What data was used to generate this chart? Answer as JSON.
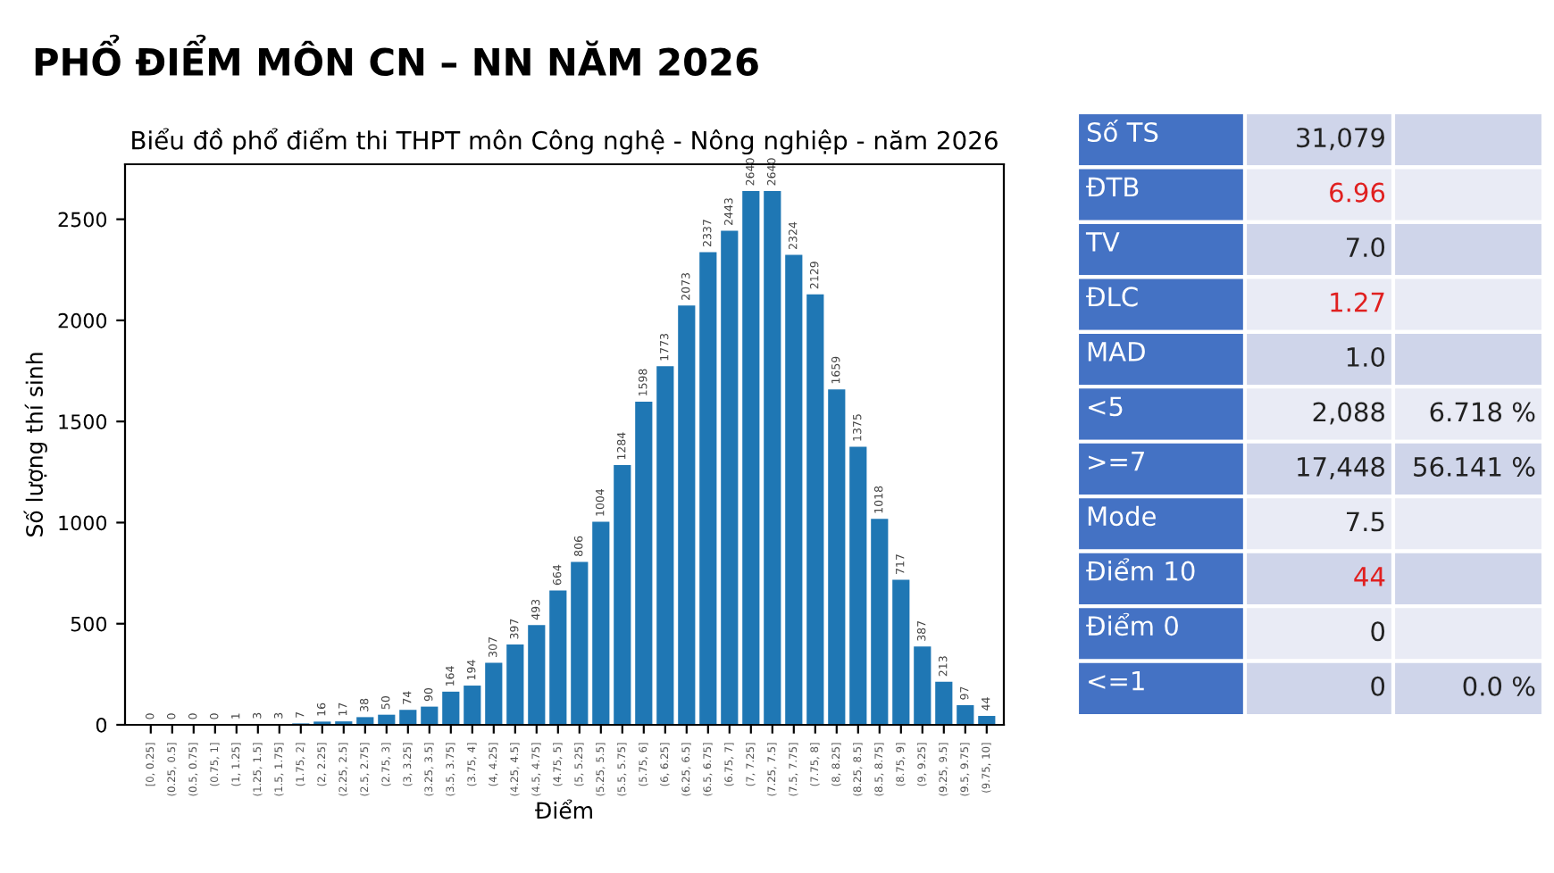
{
  "chart_data": [
    {
      "type": "bar",
      "title": "PHỔ ĐIỂM MÔN CN – NN NĂM 2026",
      "subtitle": "Biểu đồ phổ điểm thi THPT môn Công nghệ - Nông nghiệp - năm 2026",
      "xlabel": "Điểm",
      "ylabel": "Số lượng thí sinh",
      "categories": [
        "[0, 0.25]",
        "(0.25, 0.5]",
        "(0.5, 0.75]",
        "(0.75, 1]",
        "(1, 1.25]",
        "(1.25, 1.5]",
        "(1.5, 1.75]",
        "(1.75, 2]",
        "(2, 2.25]",
        "(2.25, 2.5]",
        "(2.5, 2.75]",
        "(2.75, 3]",
        "(3, 3.25]",
        "(3.25, 3.5]",
        "(3.5, 3.75]",
        "(3.75, 4]",
        "(4, 4.25]",
        "(4.25, 4.5]",
        "(4.5, 4.75]",
        "(4.75, 5]",
        "(5, 5.25]",
        "(5.25, 5.5]",
        "(5.5, 5.75]",
        "(5.75, 6]",
        "(6, 6.25]",
        "(6.25, 6.5]",
        "(6.5, 6.75]",
        "(6.75, 7]",
        "(7, 7.25]",
        "(7.25, 7.5]",
        "(7.5, 7.75]",
        "(7.75, 8]",
        "(8, 8.25]",
        "(8.25, 8.5]",
        "(8.5, 8.75]",
        "(8.75, 9]",
        "(9, 9.25]",
        "(9.25, 9.5]",
        "(9.5, 9.75]",
        "(9.75, 10]"
      ],
      "values": [
        0,
        0,
        0,
        0,
        1,
        3,
        3,
        7,
        16,
        17,
        38,
        50,
        74,
        90,
        164,
        194,
        307,
        397,
        493,
        664,
        806,
        1004,
        1284,
        1598,
        1773,
        2073,
        2337,
        2443,
        2640,
        2640,
        2324,
        2129,
        1659,
        1375,
        1018,
        717,
        387,
        213,
        97,
        44
      ],
      "color": "#1f77b4",
      "ylim": [
        0,
        2772
      ],
      "yticks": [
        0,
        500,
        1000,
        1500,
        2000,
        2500
      ],
      "data_labels": true,
      "grid": false,
      "legend": false
    },
    {
      "type": "other",
      "cell_labels": [
        [
          "Số TS",
          "31,079",
          null
        ],
        [
          "ĐTB",
          "6.96",
          null
        ],
        [
          "TV",
          "7.0",
          null
        ],
        [
          "ĐLC",
          "1.27",
          null
        ],
        [
          "MAD",
          "1.0",
          null
        ],
        [
          "<5",
          "2,088",
          "6.718 %"
        ],
        [
          ">=7",
          "17,448",
          "56.141 %"
        ],
        [
          "Mode",
          "7.5",
          null
        ],
        [
          "Điểm 10",
          "44",
          null
        ],
        [
          "Điểm 0",
          "0",
          null
        ],
        [
          "<=1",
          "0",
          "0.0 %"
        ]
      ],
      "colors": [
        "#222222",
        "#e02020",
        "#222222",
        "#e02020",
        "#222222",
        "#222222",
        "#222222",
        "#222222",
        "#e02020",
        "#222222",
        "#222222"
      ]
    }
  ]
}
